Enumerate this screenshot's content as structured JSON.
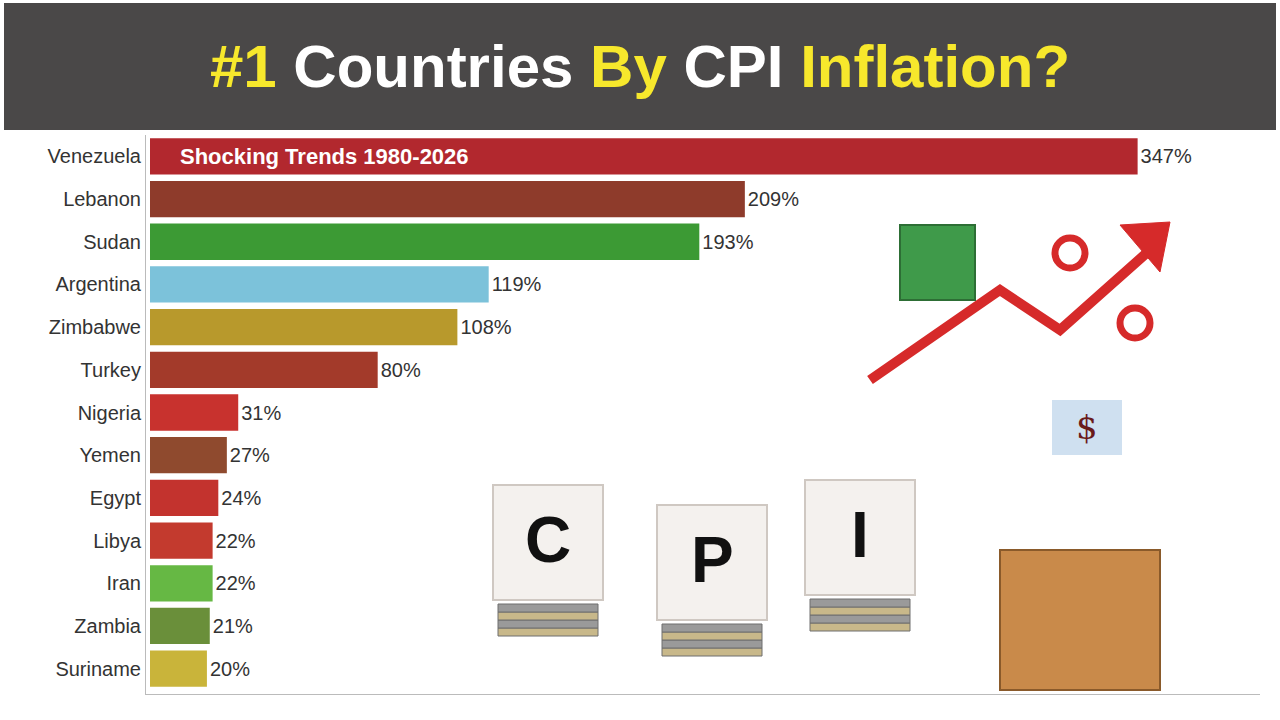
{
  "chart_data": {
    "type": "bar",
    "orientation": "horizontal",
    "title": "#1 Countries By CPI Inflation?",
    "categories": [
      "Venezuela",
      "Lebanon",
      "Sudan",
      "Argentina",
      "Zimbabwe",
      "Turkey",
      "Nigeria",
      "Yemen",
      "Egypt",
      "Libya",
      "Iran",
      "Zambia",
      "Suriname"
    ],
    "values": [
      347,
      209,
      193,
      119,
      108,
      80,
      31,
      27,
      24,
      22,
      22,
      21,
      20
    ],
    "value_labels": [
      "347%",
      "209%",
      "193%",
      "119%",
      "108%",
      "80%",
      "31%",
      "27%",
      "24%",
      "22%",
      "22%",
      "21%",
      "20%"
    ],
    "colors": [
      "#b2282e",
      "#8e3b2b",
      "#3c9a34",
      "#7cc2da",
      "#b8992c",
      "#a33a2a",
      "#c8322e",
      "#8f4a2e",
      "#c3332e",
      "#c33a2e",
      "#66b844",
      "#6a8f3a",
      "#c9b43a"
    ],
    "xlim": [
      0,
      390
    ],
    "grid": false,
    "data_labels": true,
    "tick_labels": "y",
    "annotations": [
      "Shocking Trends 1980-2026",
      "C",
      "P",
      "I",
      "$"
    ]
  }
}
